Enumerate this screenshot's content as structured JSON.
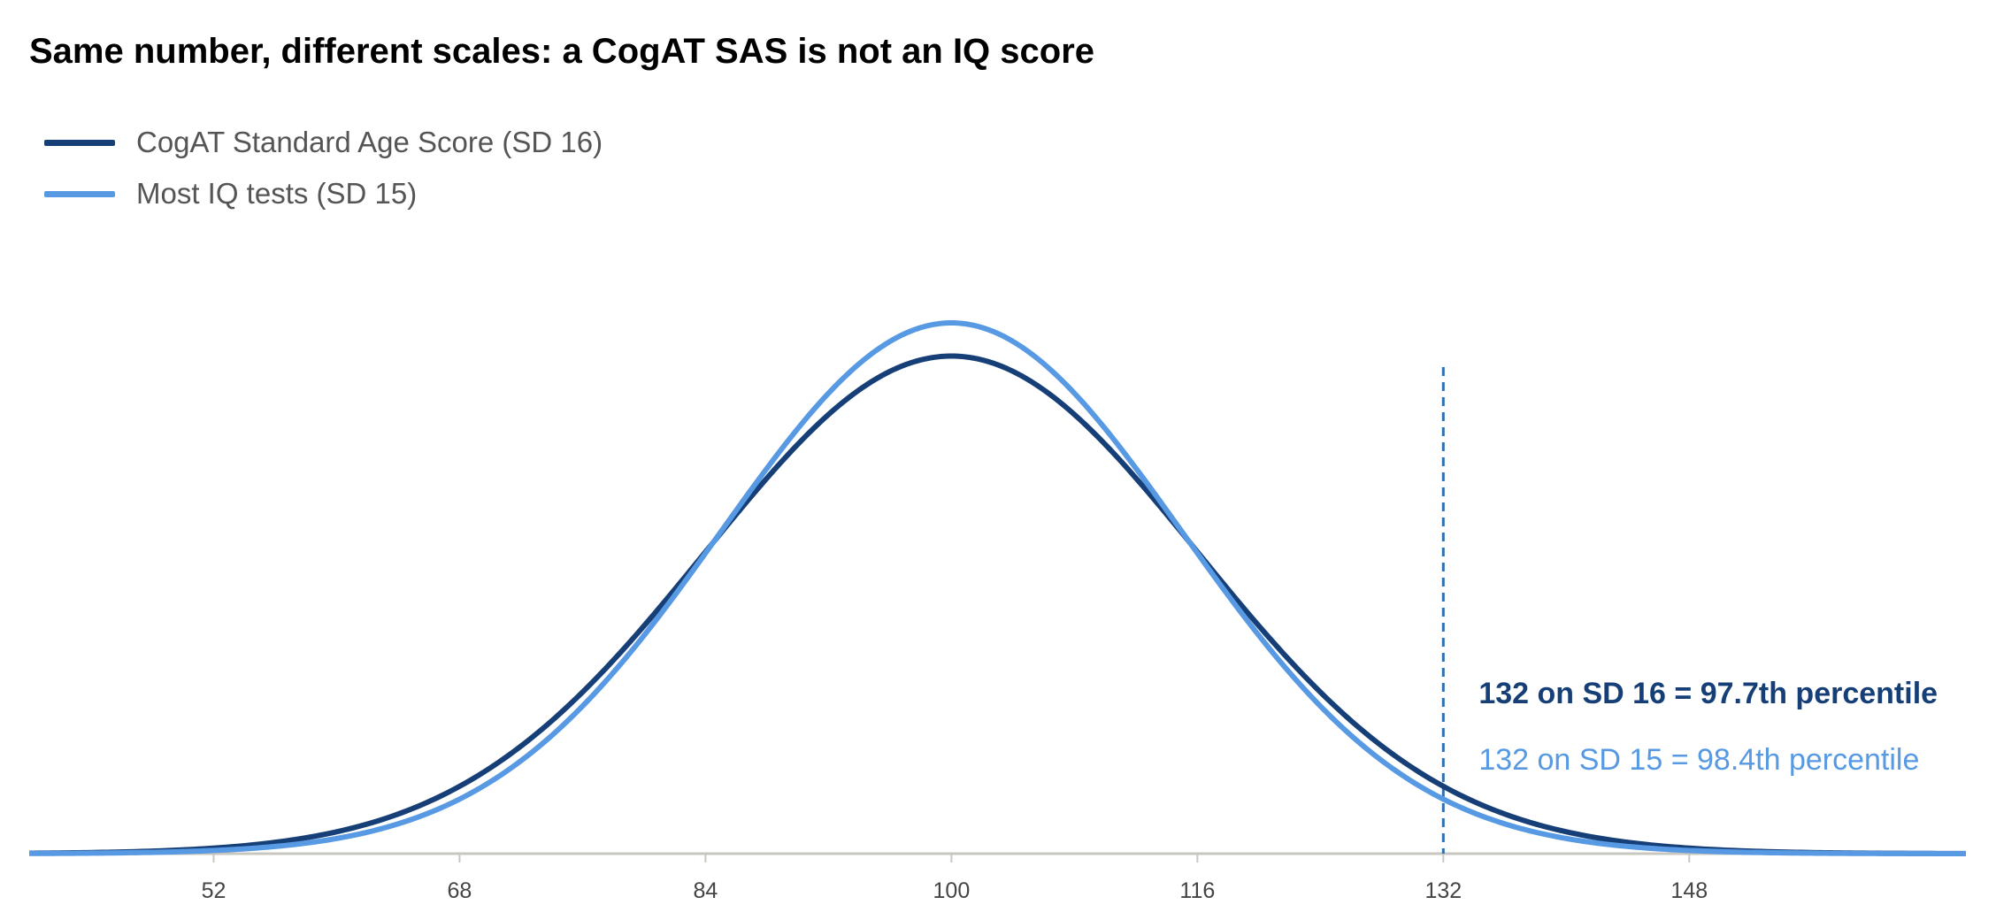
{
  "title": "Same number, different scales: a CogAT SAS is not an IQ score",
  "colors": {
    "cogat": "#173f77",
    "iq": "#5799e2",
    "axis": "#c8c7bf",
    "marker": "#2f6fb3"
  },
  "chart_data": {
    "type": "line",
    "title": "Same number, different scales: a CogAT SAS is not an IQ score",
    "xlabel": "",
    "ylabel": "",
    "xlim": [
      40,
      166
    ],
    "xticks": [
      52,
      68,
      84,
      100,
      116,
      132,
      148
    ],
    "grid": false,
    "legend_placement": "top-left",
    "series": [
      {
        "name": "CogAT Standard Age Score (SD 16)",
        "distribution": "normal",
        "mean": 100,
        "sd": 16
      },
      {
        "name": "Most IQ tests (SD 15)",
        "distribution": "normal",
        "mean": 100,
        "sd": 15
      }
    ],
    "reference_line": {
      "x": 132,
      "style": "dashed"
    },
    "annotations": [
      "132 on SD 16 = 97.7th percentile",
      "132 on SD 15 = 98.4th percentile"
    ]
  }
}
